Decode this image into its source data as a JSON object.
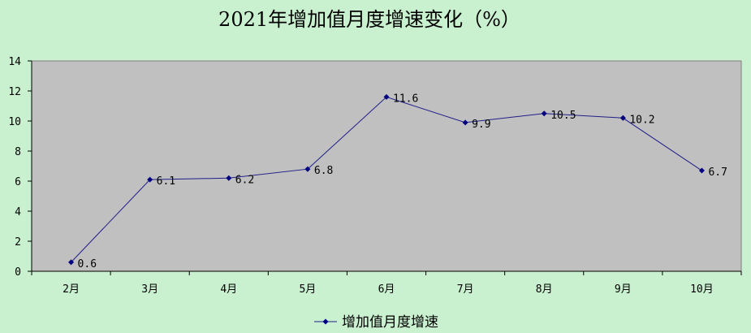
{
  "chart_data": {
    "type": "line",
    "title": "2021年增加值月度增速变化（%）",
    "categories": [
      "2月",
      "3月",
      "4月",
      "5月",
      "6月",
      "7月",
      "8月",
      "9月",
      "10月"
    ],
    "series": [
      {
        "name": "增加值月度增速",
        "values": [
          0.6,
          6.1,
          6.2,
          6.8,
          11.6,
          9.9,
          10.5,
          10.2,
          6.7
        ],
        "labels": [
          "0.6",
          "6.1",
          "6.2",
          "6.8",
          "11.6",
          "9.9",
          "10.5",
          "10.2",
          "6.7"
        ]
      }
    ],
    "ylim": [
      0,
      14
    ],
    "yticks": [
      "0",
      "2",
      "4",
      "6",
      "8",
      "10",
      "12",
      "14"
    ],
    "grid": false,
    "legend": "bottom-center",
    "colors": {
      "page_background": "#c9f0cf",
      "plot_background": "#c0c0c0",
      "line": "#1f1f8a",
      "marker": "#000080"
    }
  }
}
